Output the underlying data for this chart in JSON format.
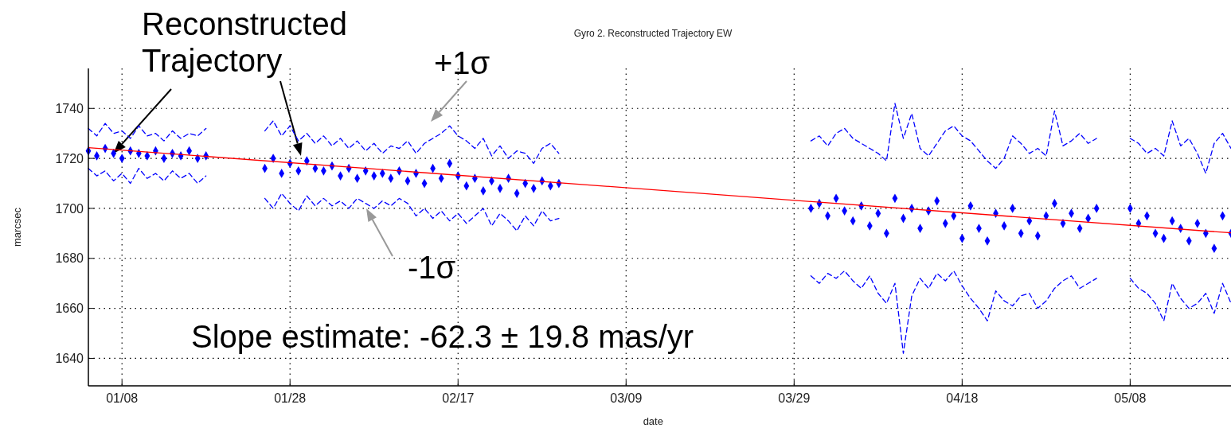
{
  "chart_data": {
    "type": "line",
    "title": "Gyro 2. Reconstructed Trajectory EW",
    "xlabel": "date",
    "ylabel": "marcsec",
    "x": [
      "--01-04",
      "--01-05",
      "--01-06",
      "--01-07",
      "--01-08",
      "--01-09",
      "--01-10",
      "--01-11",
      "--01-12",
      "--01-13",
      "--01-14",
      "--01-15",
      "--01-16",
      "--01-17",
      "--01-18",
      "--01-21",
      "--01-25",
      "--01-26",
      "--01-27",
      "--01-28",
      "--01-29",
      "--01-30",
      "--01-31",
      "--02-01",
      "--02-02",
      "--02-03",
      "--02-04",
      "--02-05",
      "--02-06",
      "--02-07",
      "--02-08",
      "--02-09",
      "--02-10",
      "--02-11",
      "--02-12",
      "--02-13",
      "--02-14",
      "--02-15",
      "--02-16",
      "--02-17",
      "--02-18",
      "--02-19",
      "--02-20",
      "--02-21",
      "--02-22",
      "--02-23",
      "--02-24",
      "--02-25",
      "--02-26",
      "--02-27",
      "--02-28",
      "--03-01",
      "--03-15",
      "--03-31",
      "--04-01",
      "--04-02",
      "--04-03",
      "--04-04",
      "--04-05",
      "--04-06",
      "--04-07",
      "--04-08",
      "--04-09",
      "--04-10",
      "--04-11",
      "--04-12",
      "--04-13",
      "--04-14",
      "--04-15",
      "--04-16",
      "--04-17",
      "--04-18",
      "--04-19",
      "--04-20",
      "--04-21",
      "--04-22",
      "--04-23",
      "--04-24",
      "--04-25",
      "--04-26",
      "--04-27",
      "--04-28",
      "--04-29",
      "--04-30",
      "--05-01",
      "--05-02",
      "--05-03",
      "--05-04",
      "--05-06",
      "--05-08",
      "--05-09",
      "--05-10",
      "--05-11",
      "--05-12",
      "--05-13",
      "--05-14",
      "--05-15",
      "--05-16",
      "--05-17",
      "--05-18",
      "--05-19",
      "--05-20"
    ],
    "series": [
      {
        "type": "line",
        "line_style": "dashed",
        "color": "#0000ff",
        "values": [
          1732,
          1729,
          1734,
          1730,
          1731,
          1728,
          1733,
          1729,
          1730,
          1727,
          1731,
          1728,
          1730,
          1729,
          1732,
          null,
          1731,
          1735,
          1729,
          1733,
          1727,
          1730,
          1726,
          1729,
          1725,
          1728,
          1724,
          1727,
          1723,
          1726,
          1722,
          1725,
          1724,
          1727,
          1722,
          1726,
          1728,
          1730,
          1733,
          1729,
          1727,
          1724,
          1728,
          1721,
          1725,
          1720,
          1723,
          1722,
          1718,
          1724,
          1726,
          1722,
          null,
          1727,
          1729,
          1725,
          1730,
          1732,
          1728,
          1726,
          1724,
          1722,
          1719,
          1742,
          1728,
          1738,
          1724,
          1721,
          1726,
          1731,
          1733,
          1729,
          1727,
          1723,
          1719,
          1716,
          1720,
          1729,
          1726,
          1722,
          1724,
          1721,
          1739,
          1725,
          1727,
          1730,
          1726,
          1728,
          null,
          1728,
          1726,
          1722,
          1724,
          1721,
          1735,
          1725,
          1728,
          1722,
          1714,
          1726,
          1730,
          1724
        ]
      },
      {
        "type": "line",
        "line_style": "dashed",
        "color": "#0000ff",
        "values": [
          1716,
          1713,
          1715,
          1711,
          1714,
          1710,
          1716,
          1712,
          1714,
          1711,
          1715,
          1712,
          1714,
          1710,
          1713,
          null,
          1704,
          1700,
          1706,
          1702,
          1699,
          1705,
          1701,
          1704,
          1701,
          1703,
          1700,
          1704,
          1702,
          1700,
          1703,
          1701,
          1704,
          1702,
          1697,
          1700,
          1696,
          1699,
          1695,
          1698,
          1694,
          1697,
          1700,
          1693,
          1698,
          1695,
          1691,
          1697,
          1693,
          1699,
          1695,
          1696,
          null,
          1673,
          1670,
          1674,
          1672,
          1675,
          1671,
          1668,
          1673,
          1666,
          1662,
          1670,
          1642,
          1665,
          1672,
          1668,
          1674,
          1671,
          1675,
          1669,
          1664,
          1660,
          1655,
          1667,
          1663,
          1661,
          1665,
          1666,
          1660,
          1663,
          1668,
          1671,
          1673,
          1668,
          1670,
          1672,
          null,
          1672,
          1668,
          1666,
          1662,
          1655,
          1670,
          1664,
          1660,
          1662,
          1666,
          1658,
          1670,
          1662
        ]
      },
      {
        "type": "scatter",
        "marker": "diamond",
        "color": "#0000ff",
        "values": [
          1723,
          1721,
          1724,
          1722,
          1720,
          1723,
          1722,
          1721,
          1723,
          1720,
          1722,
          1721,
          1723,
          1720,
          1721,
          null,
          1716,
          1720,
          1714,
          1718,
          1715,
          1719,
          1716,
          1715,
          1717,
          1713,
          1716,
          1712,
          1715,
          1713,
          1714,
          1712,
          1715,
          1711,
          1714,
          1710,
          1716,
          1712,
          1718,
          1713,
          1709,
          1712,
          1707,
          1711,
          1708,
          1712,
          1706,
          1710,
          1708,
          1711,
          1709,
          1710,
          null,
          1700,
          1702,
          1697,
          1704,
          1699,
          1695,
          1701,
          1693,
          1698,
          1690,
          1704,
          1696,
          1700,
          1692,
          1699,
          1703,
          1694,
          1697,
          1688,
          1701,
          1692,
          1687,
          1698,
          1693,
          1700,
          1690,
          1695,
          1689,
          1697,
          1702,
          1694,
          1698,
          1692,
          1696,
          1700,
          null,
          1700,
          1694,
          1697,
          1690,
          1688,
          1695,
          1692,
          1687,
          1694,
          1690,
          1684,
          1697,
          1690
        ]
      },
      {
        "type": "line",
        "line_style": "solid",
        "color": "#ff0000",
        "x": [
          "--01-04",
          "--05-20"
        ],
        "values": [
          1724.3,
          1690.2
        ]
      }
    ],
    "xlim": [
      "--01-04",
      "--05-20"
    ],
    "xticks": [
      {
        "value": "--01-08",
        "label": "01/08"
      },
      {
        "value": "--01-28",
        "label": "01/28"
      },
      {
        "value": "--02-17",
        "label": "02/17"
      },
      {
        "value": "--03-09",
        "label": "03/09"
      },
      {
        "value": "--03-29",
        "label": "03/29"
      },
      {
        "value": "--04-18",
        "label": "04/18"
      },
      {
        "value": "--05-08",
        "label": "05/08"
      }
    ],
    "ylim": [
      1629,
      1756
    ],
    "yticks": [
      1640,
      1660,
      1680,
      1700,
      1720,
      1740
    ],
    "grid": true,
    "annotations": [
      {
        "text": "Reconstructed\nTrajectory",
        "x": "--01-07",
        "y": 1722
      },
      "+1σ",
      "-1σ",
      "Slope estimate: -62.3 ± 19.8 mas/yr"
    ]
  }
}
